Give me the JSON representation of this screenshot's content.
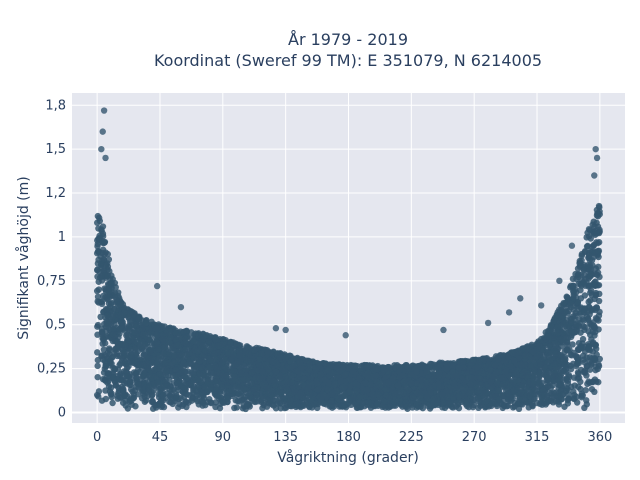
{
  "chart_data": {
    "type": "scatter",
    "title_lines": [
      "År 1979 - 2019",
      "Koordinat (Sweref 99 TM): E 351079, N 6214005"
    ],
    "xlabel": "Vågriktning (grader)",
    "ylabel": "Signifikant våghöjd (m)",
    "xlim": [
      -18,
      378
    ],
    "ylim": [
      -0.06,
      1.82
    ],
    "x_ticks": [
      0,
      45,
      90,
      135,
      180,
      225,
      270,
      315,
      360
    ],
    "x_tick_labels": [
      "0",
      "45",
      "90",
      "135",
      "180",
      "225",
      "270",
      "315",
      "360"
    ],
    "y_ticks": [
      0,
      0.25,
      0.5,
      0.75,
      1,
      1.25,
      1.5,
      1.75
    ],
    "y_tick_labels": [
      "0",
      "0,25",
      "0,5",
      "0,75",
      "1",
      "1,2",
      "1,5",
      "1,8"
    ],
    "grid": true,
    "marker_color": "#34566f",
    "background_color": "#e5e7ef",
    "envelope": {
      "direction": [
        0,
        5,
        10,
        20,
        30,
        45,
        60,
        75,
        90,
        105,
        120,
        135,
        150,
        165,
        180,
        195,
        210,
        225,
        240,
        255,
        270,
        285,
        300,
        315,
        325,
        335,
        345,
        350,
        355,
        360
      ],
      "dense_max_height": [
        1.15,
        1.05,
        0.8,
        0.6,
        0.55,
        0.5,
        0.47,
        0.45,
        0.42,
        0.38,
        0.36,
        0.33,
        0.3,
        0.28,
        0.27,
        0.27,
        0.27,
        0.27,
        0.28,
        0.29,
        0.3,
        0.32,
        0.35,
        0.4,
        0.5,
        0.65,
        0.85,
        1.0,
        1.1,
        1.2
      ]
    },
    "outliers": [
      {
        "x": 5,
        "y": 1.72
      },
      {
        "x": 4,
        "y": 1.6
      },
      {
        "x": 3,
        "y": 1.5
      },
      {
        "x": 6,
        "y": 1.45
      },
      {
        "x": 43,
        "y": 0.72
      },
      {
        "x": 60,
        "y": 0.6
      },
      {
        "x": 128,
        "y": 0.48
      },
      {
        "x": 135,
        "y": 0.47
      },
      {
        "x": 178,
        "y": 0.44
      },
      {
        "x": 248,
        "y": 0.47
      },
      {
        "x": 280,
        "y": 0.51
      },
      {
        "x": 295,
        "y": 0.57
      },
      {
        "x": 303,
        "y": 0.65
      },
      {
        "x": 318,
        "y": 0.61
      },
      {
        "x": 331,
        "y": 0.75
      },
      {
        "x": 340,
        "y": 0.95
      },
      {
        "x": 357,
        "y": 1.5
      },
      {
        "x": 358,
        "y": 1.45
      },
      {
        "x": 356,
        "y": 1.35
      }
    ]
  }
}
